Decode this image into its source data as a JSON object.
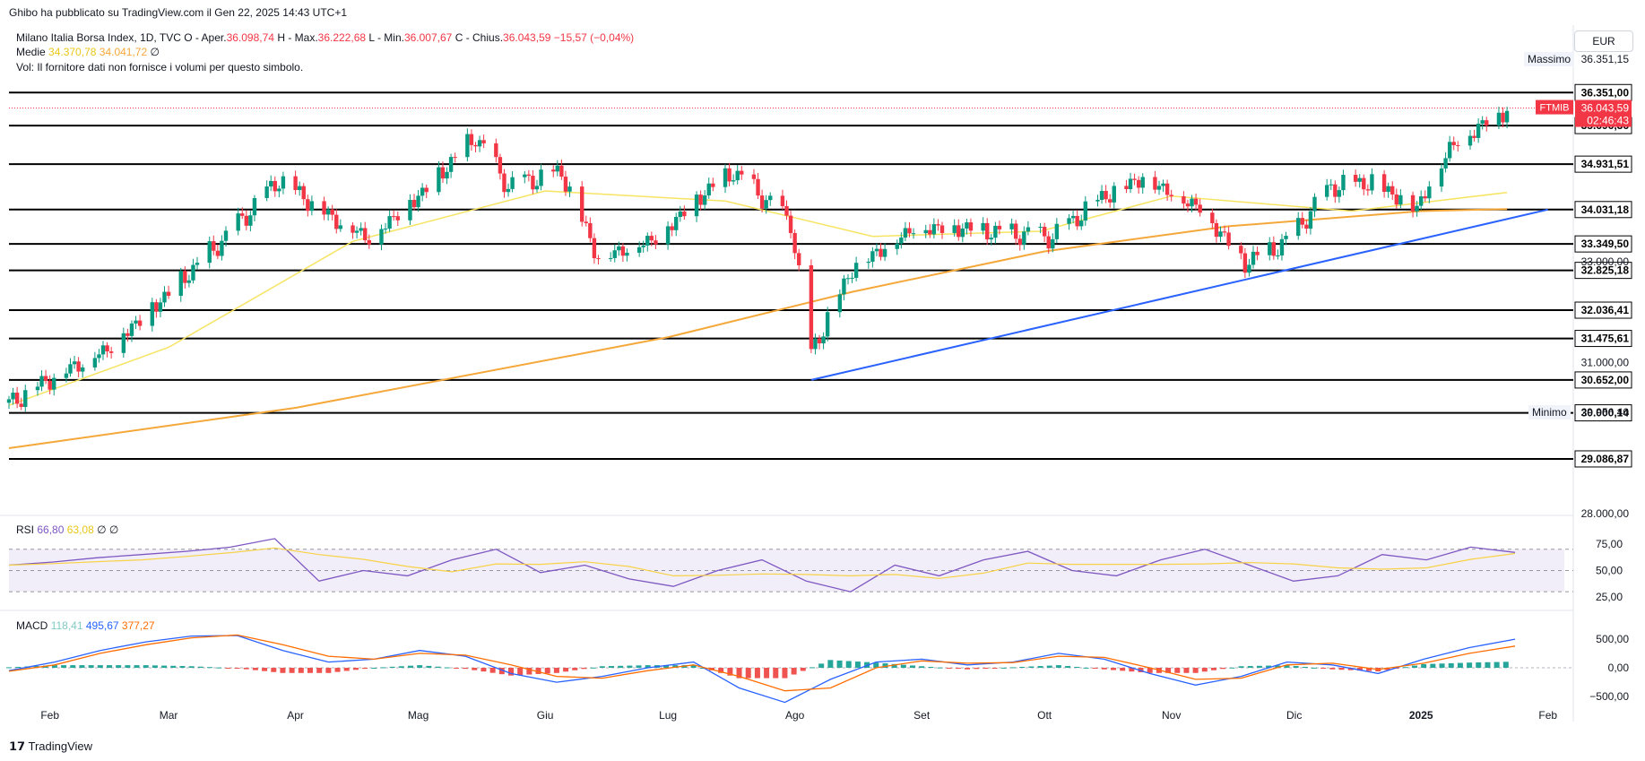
{
  "header": {
    "publisher": "Ghibo ha pubblicato su TradingView.com il Gen 22, 2025 14:43 UTC+1",
    "symbol_line": "Milano Italia Borsa Index, 1D, TVC",
    "open_label": "O - Aper.",
    "open_value": "36.098,74",
    "high_label": "H - Max.",
    "high_value": "36.222,68",
    "low_label": "L - Min.",
    "low_value": "36.007,67",
    "close_label": "C - Chius.",
    "close_value": "36.043,59",
    "change_value": "−15,57 (−0,04%)",
    "ma_label": "Medie",
    "ma_fast_value": "34.370,78",
    "ma_slow_value": "34.041,72",
    "ma_extra": "∅",
    "vol_note": "Vol: Il fornitore dati non fornisce i volumi per questo simbolo."
  },
  "currency": "EUR",
  "price_panel": {
    "max_label": "Massimo",
    "max_value": "36.351,15",
    "min_label": "Minimo",
    "min_value": "29.956,40",
    "symbol_tag": "FTMIB",
    "last_price": "36.043,59",
    "countdown": "02:46:43"
  },
  "rsi": {
    "label": "RSI",
    "value": "66,80",
    "ma_value": "63,08",
    "extra": "∅ ∅"
  },
  "macd": {
    "label": "MACD",
    "hist_value": "118,41",
    "macd_value": "495,67",
    "signal_value": "377,27"
  },
  "footer": {
    "brand": "TradingView"
  },
  "colors": {
    "up": "#089981",
    "down": "#f23645",
    "ma_fast": "#f7e463",
    "ma_slow": "#f5a83a",
    "trendline": "#2962ff",
    "rsi": "#7e57c2",
    "rsi_ma": "#f7d246",
    "macd": "#2962ff",
    "signal": "#ff6d00",
    "hist_up": "#26a69a",
    "hist_down": "#ef5350"
  },
  "chart_data": [
    {
      "type": "candlestick",
      "title": "Milano Italia Borsa Index, 1D, TVC",
      "x_ticks": [
        "Feb",
        "Mar",
        "Apr",
        "Mag",
        "Giu",
        "Lug",
        "Ago",
        "Set",
        "Ott",
        "Nov",
        "Dic",
        "2025",
        "Feb"
      ],
      "y_ticks": [
        "28.000,00",
        "31.000,00",
        "33.000,00"
      ],
      "ylim": [
        27700,
        36800
      ],
      "horizontal_levels": [
        {
          "value": 36351,
          "label": "36.351,00"
        },
        {
          "value": 35696.36,
          "label": "35.696,36"
        },
        {
          "value": 34931.51,
          "label": "34.931,51"
        },
        {
          "value": 34031.18,
          "label": "34.031,18"
        },
        {
          "value": 33349.5,
          "label": "33.349,50"
        },
        {
          "value": 32825.18,
          "label": "32.825,18"
        },
        {
          "value": 32036.41,
          "label": "32.036,41"
        },
        {
          "value": 31475.61,
          "label": "31.475,61"
        },
        {
          "value": 30652,
          "label": "30.652,00"
        },
        {
          "value": 30000.14,
          "label": "30.000,14"
        },
        {
          "value": 29086.87,
          "label": "29.086,87"
        }
      ],
      "trendline": [
        {
          "x": "2024-08-05",
          "y": 30652
        },
        {
          "x": "2025-02-01",
          "y": 34031
        }
      ],
      "close_series": {
        "x": [
          "2024-01-22",
          "2024-02-01",
          "2024-02-15",
          "2024-03-01",
          "2024-03-15",
          "2024-03-28",
          "2024-04-10",
          "2024-04-19",
          "2024-05-02",
          "2024-05-15",
          "2024-05-23",
          "2024-06-05",
          "2024-06-14",
          "2024-06-28",
          "2024-07-10",
          "2024-07-17",
          "2024-07-31",
          "2024-08-05",
          "2024-08-15",
          "2024-08-30",
          "2024-09-11",
          "2024-09-20",
          "2024-10-03",
          "2024-10-15",
          "2024-10-25",
          "2024-11-08",
          "2024-11-19",
          "2024-11-29",
          "2024-12-10",
          "2024-12-20",
          "2024-12-31",
          "2025-01-08",
          "2025-01-15",
          "2025-01-22"
        ],
        "y": [
          30200,
          30700,
          31300,
          32400,
          33500,
          34650,
          33900,
          33500,
          34400,
          35500,
          34500,
          34800,
          33100,
          33500,
          34400,
          34800,
          33800,
          31200,
          32900,
          33700,
          33700,
          33600,
          33500,
          34300,
          34700,
          34100,
          33000,
          33400,
          34500,
          34600,
          34100,
          35300,
          35700,
          36043
        ]
      },
      "sma_fast": {
        "x": [
          "2024-01-22",
          "2024-03-01",
          "2024-04-15",
          "2024-06-01",
          "2024-07-15",
          "2024-08-20",
          "2024-09-30",
          "2024-11-01",
          "2024-12-15",
          "2025-01-22"
        ],
        "y": [
          30150,
          31300,
          33400,
          34400,
          34200,
          33500,
          33600,
          34300,
          34000,
          34371
        ]
      },
      "sma_slow": {
        "x": [
          "2024-01-22",
          "2024-04-01",
          "2024-07-01",
          "2024-08-15",
          "2024-10-01",
          "2024-11-15",
          "2025-01-01",
          "2025-01-22"
        ],
        "y": [
          29300,
          30100,
          31500,
          32400,
          33200,
          33700,
          34000,
          34042
        ]
      }
    },
    {
      "type": "line",
      "title": "RSI",
      "y_ticks": [
        "75,00",
        "50,00",
        "25,00"
      ],
      "ylim": [
        20,
        85
      ],
      "bands": [
        70,
        50,
        30
      ],
      "series": [
        {
          "name": "RSI",
          "values": [
            55,
            58,
            62,
            65,
            68,
            72,
            80,
            40,
            50,
            45,
            60,
            70,
            48,
            55,
            42,
            35,
            50,
            60,
            40,
            30,
            55,
            45,
            60,
            68,
            50,
            45,
            60,
            70,
            55,
            40,
            45,
            65,
            60,
            72,
            67
          ]
        }
      ]
    },
    {
      "type": "line",
      "title": "MACD",
      "y_ticks": [
        "500,00",
        "0,00",
        "−500,00"
      ],
      "ylim": [
        -700,
        700
      ],
      "series": [
        {
          "name": "MACD",
          "values": [
            -50,
            100,
            300,
            450,
            550,
            560,
            300,
            100,
            150,
            300,
            200,
            -100,
            -250,
            -150,
            0,
            100,
            -350,
            -600,
            -200,
            100,
            150,
            50,
            100,
            250,
            150,
            -100,
            -300,
            -150,
            100,
            50,
            -100,
            150,
            350,
            496
          ]
        },
        {
          "name": "Signal",
          "values": [
            -60,
            50,
            250,
            400,
            520,
            570,
            400,
            200,
            150,
            250,
            220,
            50,
            -150,
            -180,
            -50,
            50,
            -150,
            -400,
            -350,
            0,
            120,
            80,
            90,
            200,
            180,
            0,
            -200,
            -180,
            50,
            80,
            -30,
            80,
            250,
            377
          ]
        }
      ]
    }
  ]
}
